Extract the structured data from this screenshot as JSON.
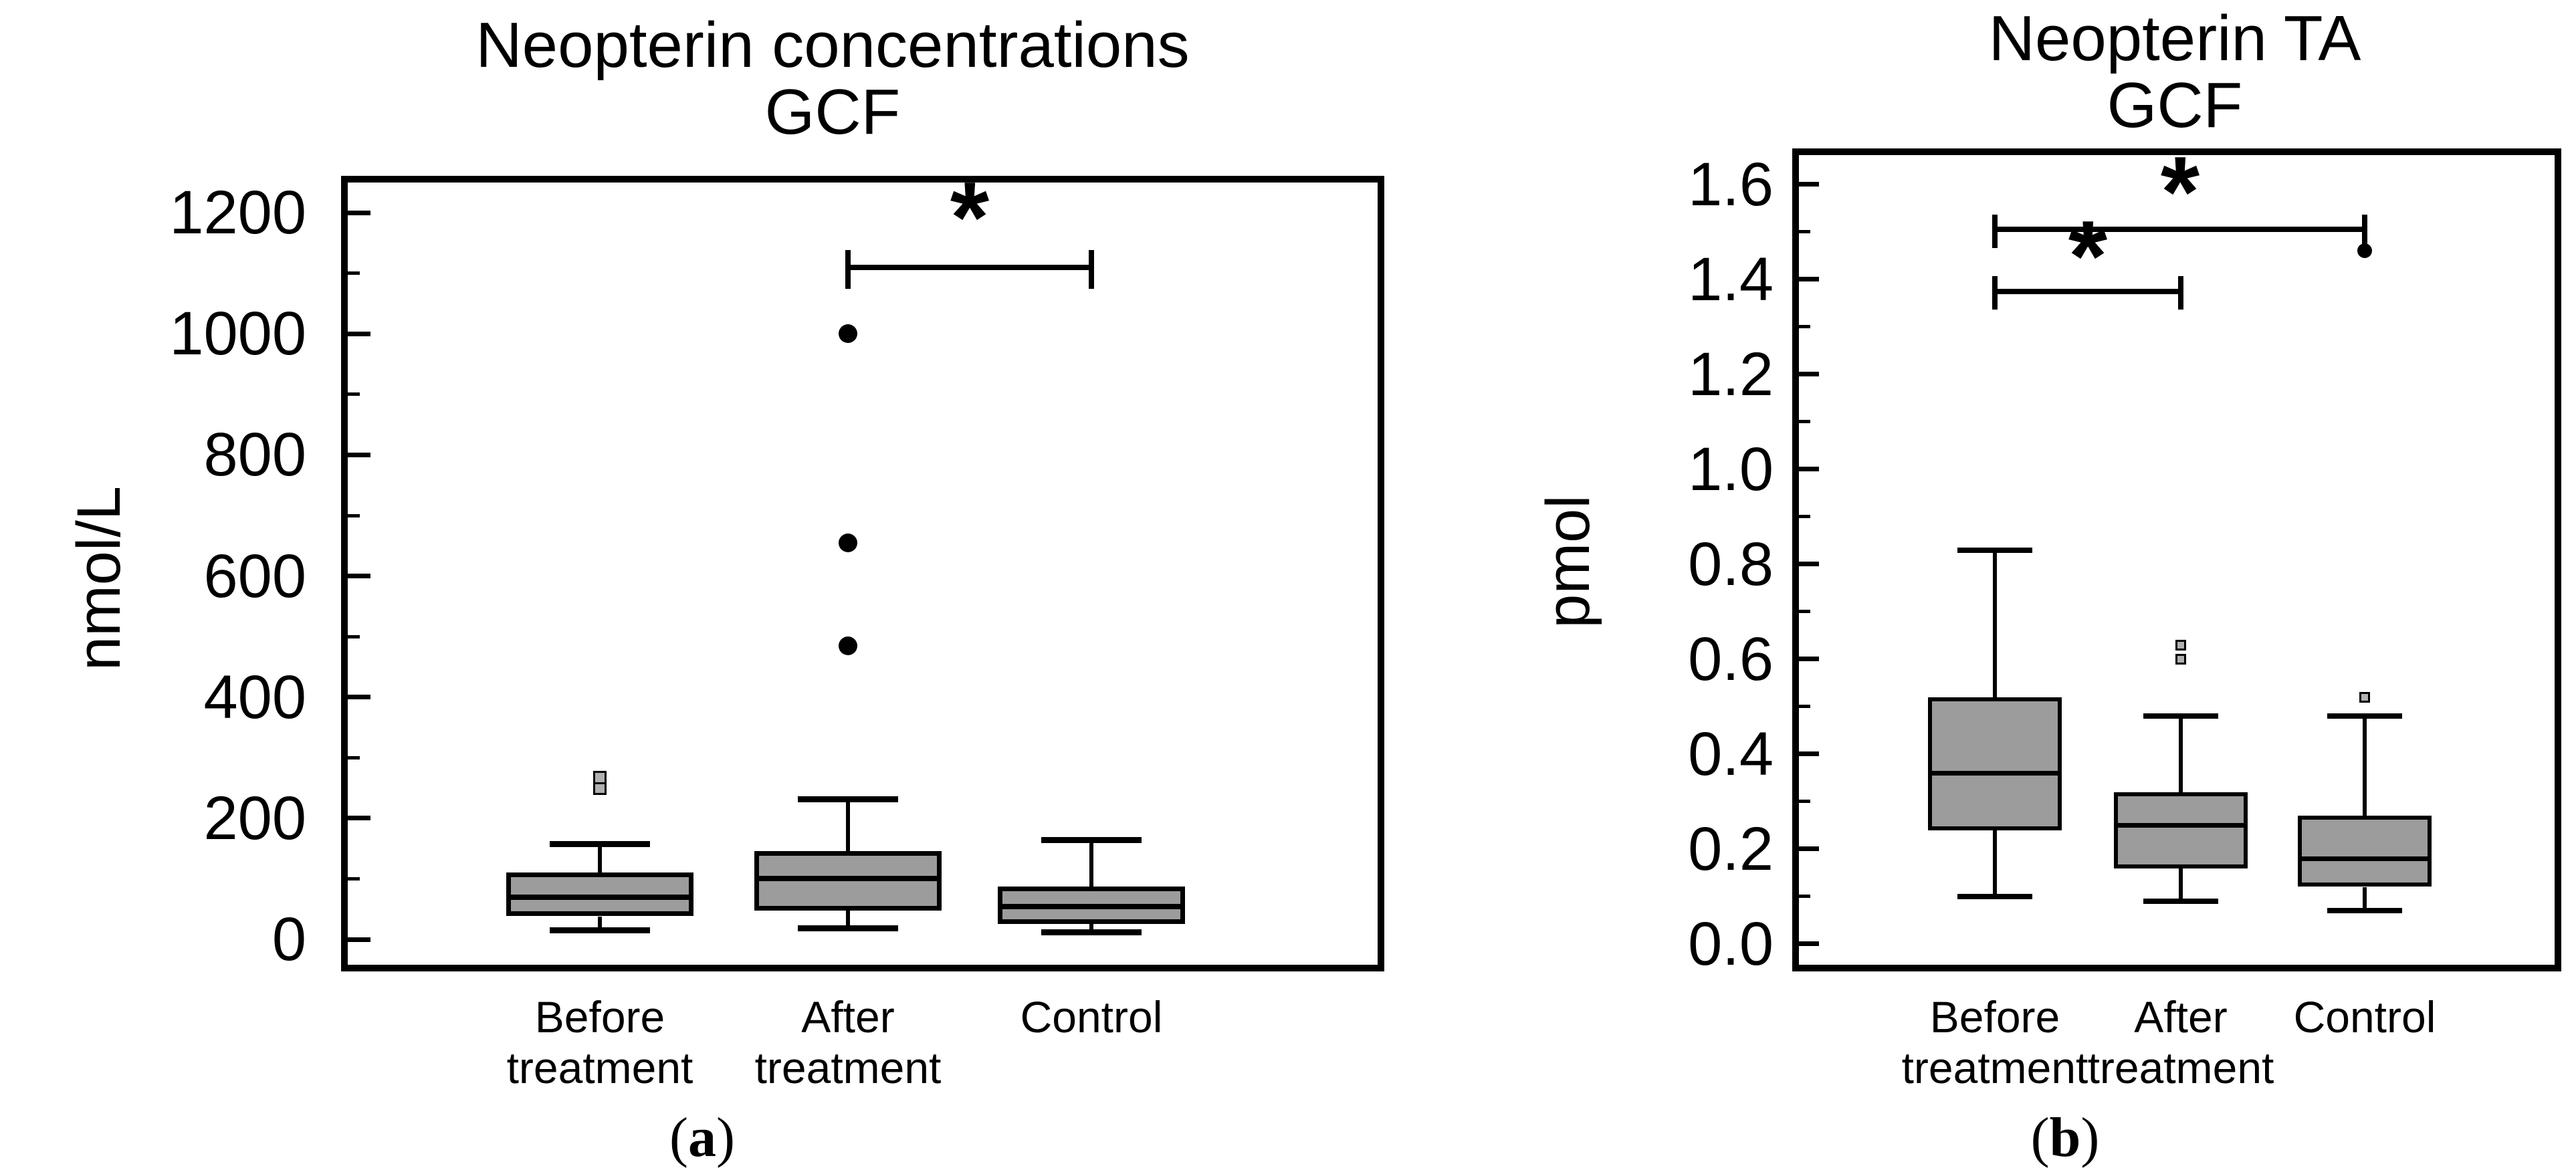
{
  "page": {
    "background": "#ffffff"
  },
  "styles": {
    "box_fill": "#9c9c9c",
    "outlier_square_fill": "#b0b0b0",
    "line_color": "#000000",
    "background": "#ffffff"
  },
  "chart_data": [
    {
      "type": "box",
      "panel_label": "(a)",
      "panel_letter": "a",
      "title": "Neopterin concentrations GCF",
      "title_lines": [
        "Neopterin concentrations",
        "GCF"
      ],
      "ylabel": "nmol/L",
      "ylim": [
        -53,
        1261
      ],
      "grid": false,
      "legend": null,
      "yticks_major": [
        0,
        200,
        400,
        600,
        800,
        1000,
        1200
      ],
      "ytick_labels": [
        "0",
        "200",
        "400",
        "600",
        "800",
        "1000",
        "1200"
      ],
      "yticks_minor": [
        100,
        300,
        500,
        700,
        900,
        1100
      ],
      "categories": [
        {
          "lines": [
            "Before",
            "treatment"
          ]
        },
        {
          "lines": [
            "After",
            "treatment"
          ]
        },
        {
          "lines": [
            "Control"
          ]
        }
      ],
      "boxes": [
        {
          "name": "Before treatment",
          "whisker_low": 15,
          "q1": 38,
          "median": 70,
          "q3": 110,
          "whisker_high": 157,
          "outliers_square": [
            250,
            267
          ],
          "outliers_circle": []
        },
        {
          "name": "After treatment",
          "whisker_low": 18,
          "q1": 48,
          "median": 101,
          "q3": 146,
          "whisker_high": 231,
          "outliers_square": [],
          "outliers_circle": [
            485,
            655,
            1000
          ]
        },
        {
          "name": "Control",
          "whisker_low": 12,
          "q1": 25,
          "median": 54,
          "q3": 87,
          "whisker_high": 164,
          "outliers_square": [],
          "outliers_circle": []
        }
      ],
      "brackets": [
        {
          "from": 1,
          "to": 2,
          "value": 1110,
          "star_value": 1185,
          "label": "*"
        }
      ]
    },
    {
      "type": "box",
      "panel_label": "(b)",
      "panel_letter": "b",
      "title": "Neopterin TA GCF",
      "title_lines": [
        "Neopterin TA",
        "GCF"
      ],
      "ylabel": "pmol",
      "ylim": [
        -0.058,
        1.676
      ],
      "grid": false,
      "legend": null,
      "yticks_major": [
        0.0,
        0.2,
        0.4,
        0.6,
        0.8,
        1.0,
        1.2,
        1.4,
        1.6
      ],
      "ytick_labels": [
        "0.0",
        "0.2",
        "0.4",
        "0.6",
        "0.8",
        "1.0",
        "1.2",
        "1.4",
        "1.6"
      ],
      "yticks_minor": [
        0.1,
        0.3,
        0.5,
        0.7,
        0.9,
        1.1,
        1.3,
        1.5
      ],
      "categories": [
        {
          "lines": [
            "Before",
            "treatment"
          ]
        },
        {
          "lines": [
            "After",
            "treatment"
          ]
        },
        {
          "lines": [
            "Control"
          ]
        }
      ],
      "boxes": [
        {
          "name": "Before treatment",
          "whisker_low": 0.1,
          "q1": 0.24,
          "median": 0.36,
          "q3": 0.52,
          "whisker_high": 0.83,
          "outliers_square": [],
          "outliers_circle": []
        },
        {
          "name": "After treatment",
          "whisker_low": 0.09,
          "q1": 0.16,
          "median": 0.25,
          "q3": 0.32,
          "whisker_high": 0.48,
          "outliers_square": [
            0.6,
            0.63
          ],
          "outliers_circle": []
        },
        {
          "name": "Control",
          "whisker_low": 0.07,
          "q1": 0.12,
          "median": 0.18,
          "q3": 0.27,
          "whisker_high": 0.48,
          "outliers_square": [
            0.52
          ],
          "outliers_circle": [
            1.46
          ]
        }
      ],
      "brackets": [
        {
          "from": 0,
          "to": 2,
          "value": 1.505,
          "star_value": 1.575,
          "label": "*"
        },
        {
          "from": 0,
          "to": 1,
          "value": 1.375,
          "star_value": 1.44,
          "label": "*"
        }
      ]
    }
  ]
}
